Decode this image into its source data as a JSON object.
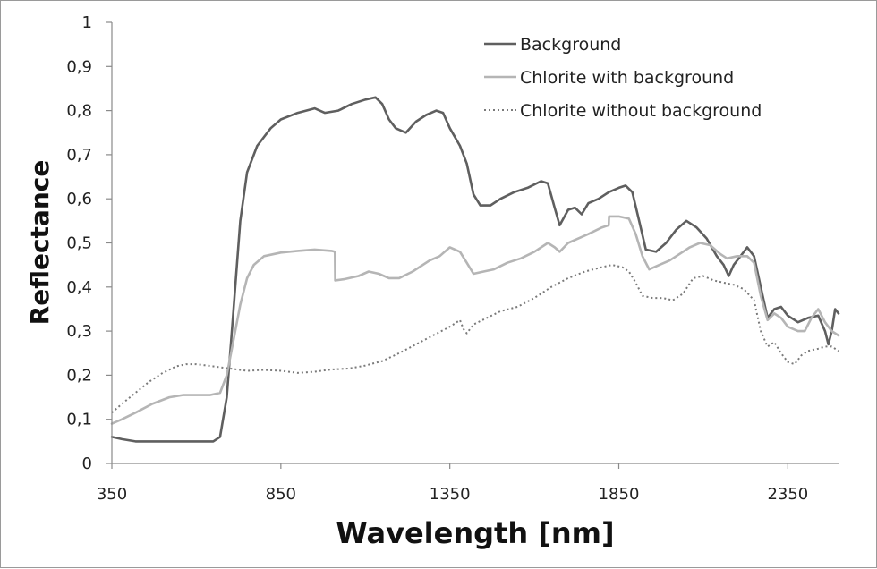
{
  "chart_data": {
    "type": "line",
    "xlabel": "Wavelength [nm]",
    "ylabel": "Reflectance",
    "xlim": [
      350,
      2500
    ],
    "ylim": [
      0,
      1
    ],
    "xticks": [
      350,
      850,
      1350,
      1850,
      2350
    ],
    "xtick_labels": [
      "350",
      "850",
      "1350",
      "1850",
      "2350"
    ],
    "yticks": [
      0,
      0.1,
      0.2,
      0.3,
      0.4,
      0.5,
      0.6,
      0.7,
      0.8,
      0.9,
      1
    ],
    "ytick_labels": [
      "0",
      "0,1",
      "0,2",
      "0,3",
      "0,4",
      "0,5",
      "0,6",
      "0,7",
      "0,8",
      "0,9",
      "1"
    ],
    "grid": false,
    "legend_position": "top-right",
    "series": [
      {
        "name": "Background",
        "color": "#5f5f5f",
        "style": "solid",
        "points": [
          [
            350,
            0.06
          ],
          [
            380,
            0.055
          ],
          [
            420,
            0.05
          ],
          [
            500,
            0.05
          ],
          [
            600,
            0.05
          ],
          [
            650,
            0.05
          ],
          [
            670,
            0.06
          ],
          [
            690,
            0.15
          ],
          [
            710,
            0.35
          ],
          [
            730,
            0.55
          ],
          [
            750,
            0.66
          ],
          [
            780,
            0.72
          ],
          [
            820,
            0.76
          ],
          [
            850,
            0.78
          ],
          [
            900,
            0.795
          ],
          [
            950,
            0.805
          ],
          [
            980,
            0.795
          ],
          [
            1020,
            0.8
          ],
          [
            1060,
            0.815
          ],
          [
            1100,
            0.825
          ],
          [
            1130,
            0.83
          ],
          [
            1150,
            0.815
          ],
          [
            1170,
            0.78
          ],
          [
            1190,
            0.76
          ],
          [
            1220,
            0.75
          ],
          [
            1250,
            0.775
          ],
          [
            1280,
            0.79
          ],
          [
            1310,
            0.8
          ],
          [
            1330,
            0.795
          ],
          [
            1350,
            0.76
          ],
          [
            1380,
            0.72
          ],
          [
            1400,
            0.68
          ],
          [
            1420,
            0.61
          ],
          [
            1440,
            0.585
          ],
          [
            1470,
            0.585
          ],
          [
            1500,
            0.6
          ],
          [
            1540,
            0.615
          ],
          [
            1580,
            0.625
          ],
          [
            1620,
            0.64
          ],
          [
            1640,
            0.635
          ],
          [
            1660,
            0.58
          ],
          [
            1675,
            0.54
          ],
          [
            1700,
            0.575
          ],
          [
            1720,
            0.58
          ],
          [
            1740,
            0.565
          ],
          [
            1760,
            0.59
          ],
          [
            1790,
            0.6
          ],
          [
            1820,
            0.615
          ],
          [
            1850,
            0.625
          ],
          [
            1870,
            0.63
          ],
          [
            1890,
            0.615
          ],
          [
            1910,
            0.55
          ],
          [
            1930,
            0.485
          ],
          [
            1960,
            0.48
          ],
          [
            1990,
            0.5
          ],
          [
            2020,
            0.53
          ],
          [
            2050,
            0.55
          ],
          [
            2080,
            0.535
          ],
          [
            2110,
            0.51
          ],
          [
            2140,
            0.47
          ],
          [
            2160,
            0.45
          ],
          [
            2175,
            0.425
          ],
          [
            2190,
            0.45
          ],
          [
            2210,
            0.47
          ],
          [
            2230,
            0.49
          ],
          [
            2250,
            0.47
          ],
          [
            2270,
            0.4
          ],
          [
            2290,
            0.33
          ],
          [
            2310,
            0.35
          ],
          [
            2330,
            0.355
          ],
          [
            2350,
            0.335
          ],
          [
            2380,
            0.32
          ],
          [
            2410,
            0.33
          ],
          [
            2440,
            0.335
          ],
          [
            2460,
            0.3
          ],
          [
            2470,
            0.27
          ],
          [
            2480,
            0.3
          ],
          [
            2490,
            0.35
          ],
          [
            2500,
            0.34
          ]
        ]
      },
      {
        "name": "Chlorite with background",
        "color": "#b5b5b5",
        "style": "solid",
        "points": [
          [
            350,
            0.09
          ],
          [
            380,
            0.1
          ],
          [
            420,
            0.115
          ],
          [
            470,
            0.135
          ],
          [
            520,
            0.15
          ],
          [
            560,
            0.155
          ],
          [
            600,
            0.155
          ],
          [
            640,
            0.155
          ],
          [
            670,
            0.16
          ],
          [
            690,
            0.2
          ],
          [
            710,
            0.28
          ],
          [
            730,
            0.36
          ],
          [
            750,
            0.42
          ],
          [
            770,
            0.45
          ],
          [
            800,
            0.47
          ],
          [
            850,
            0.478
          ],
          [
            900,
            0.482
          ],
          [
            950,
            0.485
          ],
          [
            1000,
            0.482
          ],
          [
            1010,
            0.48
          ],
          [
            1011,
            0.415
          ],
          [
            1040,
            0.418
          ],
          [
            1080,
            0.425
          ],
          [
            1110,
            0.435
          ],
          [
            1140,
            0.43
          ],
          [
            1170,
            0.42
          ],
          [
            1200,
            0.42
          ],
          [
            1240,
            0.435
          ],
          [
            1290,
            0.46
          ],
          [
            1320,
            0.47
          ],
          [
            1350,
            0.49
          ],
          [
            1380,
            0.48
          ],
          [
            1400,
            0.455
          ],
          [
            1420,
            0.43
          ],
          [
            1450,
            0.435
          ],
          [
            1480,
            0.44
          ],
          [
            1520,
            0.455
          ],
          [
            1560,
            0.465
          ],
          [
            1600,
            0.48
          ],
          [
            1640,
            0.5
          ],
          [
            1660,
            0.49
          ],
          [
            1675,
            0.48
          ],
          [
            1700,
            0.5
          ],
          [
            1730,
            0.51
          ],
          [
            1760,
            0.52
          ],
          [
            1800,
            0.535
          ],
          [
            1820,
            0.54
          ],
          [
            1821,
            0.56
          ],
          [
            1850,
            0.56
          ],
          [
            1880,
            0.555
          ],
          [
            1900,
            0.52
          ],
          [
            1920,
            0.47
          ],
          [
            1940,
            0.44
          ],
          [
            1970,
            0.45
          ],
          [
            2000,
            0.46
          ],
          [
            2030,
            0.475
          ],
          [
            2060,
            0.49
          ],
          [
            2090,
            0.5
          ],
          [
            2120,
            0.495
          ],
          [
            2150,
            0.475
          ],
          [
            2170,
            0.465
          ],
          [
            2200,
            0.47
          ],
          [
            2230,
            0.47
          ],
          [
            2250,
            0.455
          ],
          [
            2270,
            0.38
          ],
          [
            2290,
            0.325
          ],
          [
            2310,
            0.34
          ],
          [
            2330,
            0.33
          ],
          [
            2350,
            0.31
          ],
          [
            2380,
            0.3
          ],
          [
            2400,
            0.3
          ],
          [
            2420,
            0.33
          ],
          [
            2440,
            0.35
          ],
          [
            2460,
            0.32
          ],
          [
            2480,
            0.3
          ],
          [
            2500,
            0.29
          ]
        ]
      },
      {
        "name": "Chlorite without background",
        "color": "#7a7a7a",
        "style": "dotted",
        "points": [
          [
            350,
            0.115
          ],
          [
            380,
            0.135
          ],
          [
            420,
            0.16
          ],
          [
            460,
            0.185
          ],
          [
            500,
            0.205
          ],
          [
            540,
            0.22
          ],
          [
            570,
            0.225
          ],
          [
            600,
            0.225
          ],
          [
            650,
            0.22
          ],
          [
            700,
            0.215
          ],
          [
            750,
            0.21
          ],
          [
            800,
            0.212
          ],
          [
            850,
            0.21
          ],
          [
            900,
            0.205
          ],
          [
            950,
            0.208
          ],
          [
            1000,
            0.213
          ],
          [
            1050,
            0.215
          ],
          [
            1100,
            0.222
          ],
          [
            1150,
            0.232
          ],
          [
            1200,
            0.25
          ],
          [
            1250,
            0.27
          ],
          [
            1300,
            0.29
          ],
          [
            1350,
            0.31
          ],
          [
            1380,
            0.325
          ],
          [
            1390,
            0.305
          ],
          [
            1400,
            0.295
          ],
          [
            1420,
            0.315
          ],
          [
            1460,
            0.33
          ],
          [
            1500,
            0.345
          ],
          [
            1550,
            0.355
          ],
          [
            1600,
            0.375
          ],
          [
            1650,
            0.4
          ],
          [
            1700,
            0.42
          ],
          [
            1750,
            0.435
          ],
          [
            1800,
            0.445
          ],
          [
            1830,
            0.45
          ],
          [
            1860,
            0.445
          ],
          [
            1880,
            0.435
          ],
          [
            1900,
            0.41
          ],
          [
            1920,
            0.38
          ],
          [
            1950,
            0.375
          ],
          [
            1980,
            0.375
          ],
          [
            2010,
            0.37
          ],
          [
            2040,
            0.385
          ],
          [
            2070,
            0.42
          ],
          [
            2100,
            0.425
          ],
          [
            2130,
            0.415
          ],
          [
            2160,
            0.41
          ],
          [
            2190,
            0.405
          ],
          [
            2220,
            0.395
          ],
          [
            2250,
            0.37
          ],
          [
            2270,
            0.3
          ],
          [
            2290,
            0.265
          ],
          [
            2310,
            0.275
          ],
          [
            2330,
            0.25
          ],
          [
            2350,
            0.23
          ],
          [
            2370,
            0.225
          ],
          [
            2390,
            0.245
          ],
          [
            2410,
            0.255
          ],
          [
            2440,
            0.26
          ],
          [
            2460,
            0.265
          ],
          [
            2480,
            0.265
          ],
          [
            2500,
            0.255
          ]
        ]
      }
    ]
  }
}
